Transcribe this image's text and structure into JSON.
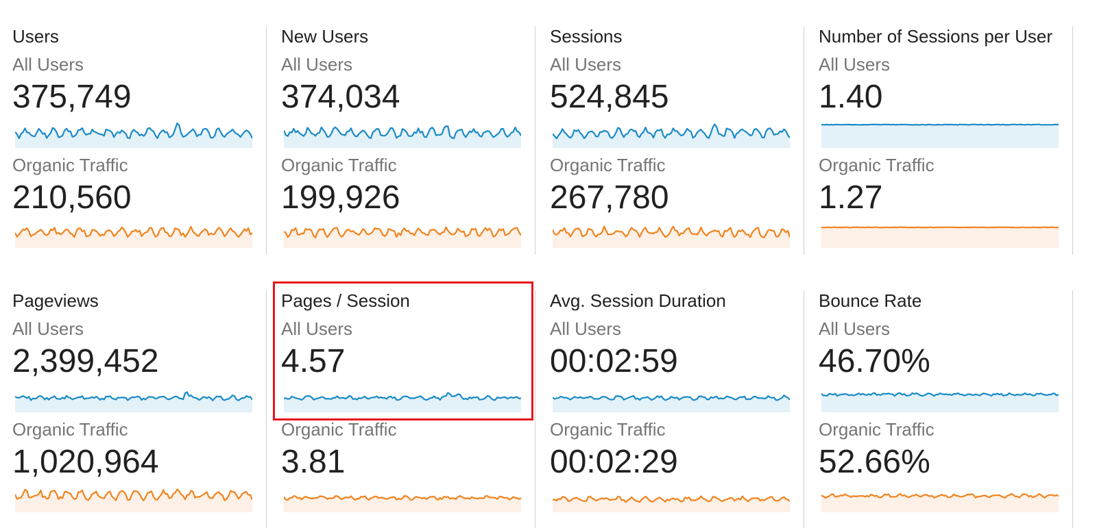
{
  "segments": {
    "all_users": "All Users",
    "organic": "Organic Traffic"
  },
  "colors": {
    "all_users_line": "#1a8ac6",
    "all_users_fill": "#e3f1f9",
    "organic_line": "#f0831e",
    "organic_fill": "#fdf0e6",
    "highlight_border": "#e8141c"
  },
  "metrics": [
    {
      "title": "Users",
      "all_users_value": "375,749",
      "organic_value": "210,560"
    },
    {
      "title": "New Users",
      "all_users_value": "374,034",
      "organic_value": "199,926"
    },
    {
      "title": "Sessions",
      "all_users_value": "524,845",
      "organic_value": "267,780"
    },
    {
      "title": "Number of Sessions per User",
      "all_users_value": "1.40",
      "organic_value": "1.27"
    },
    {
      "title": "Pageviews",
      "all_users_value": "2,399,452",
      "organic_value": "1,020,964"
    },
    {
      "title": "Pages / Session",
      "all_users_value": "4.57",
      "organic_value": "3.81"
    },
    {
      "title": "Avg. Session Duration",
      "all_users_value": "00:02:59",
      "organic_value": "00:02:29"
    },
    {
      "title": "Bounce Rate",
      "all_users_value": "46.70%",
      "organic_value": "52.66%"
    }
  ]
}
